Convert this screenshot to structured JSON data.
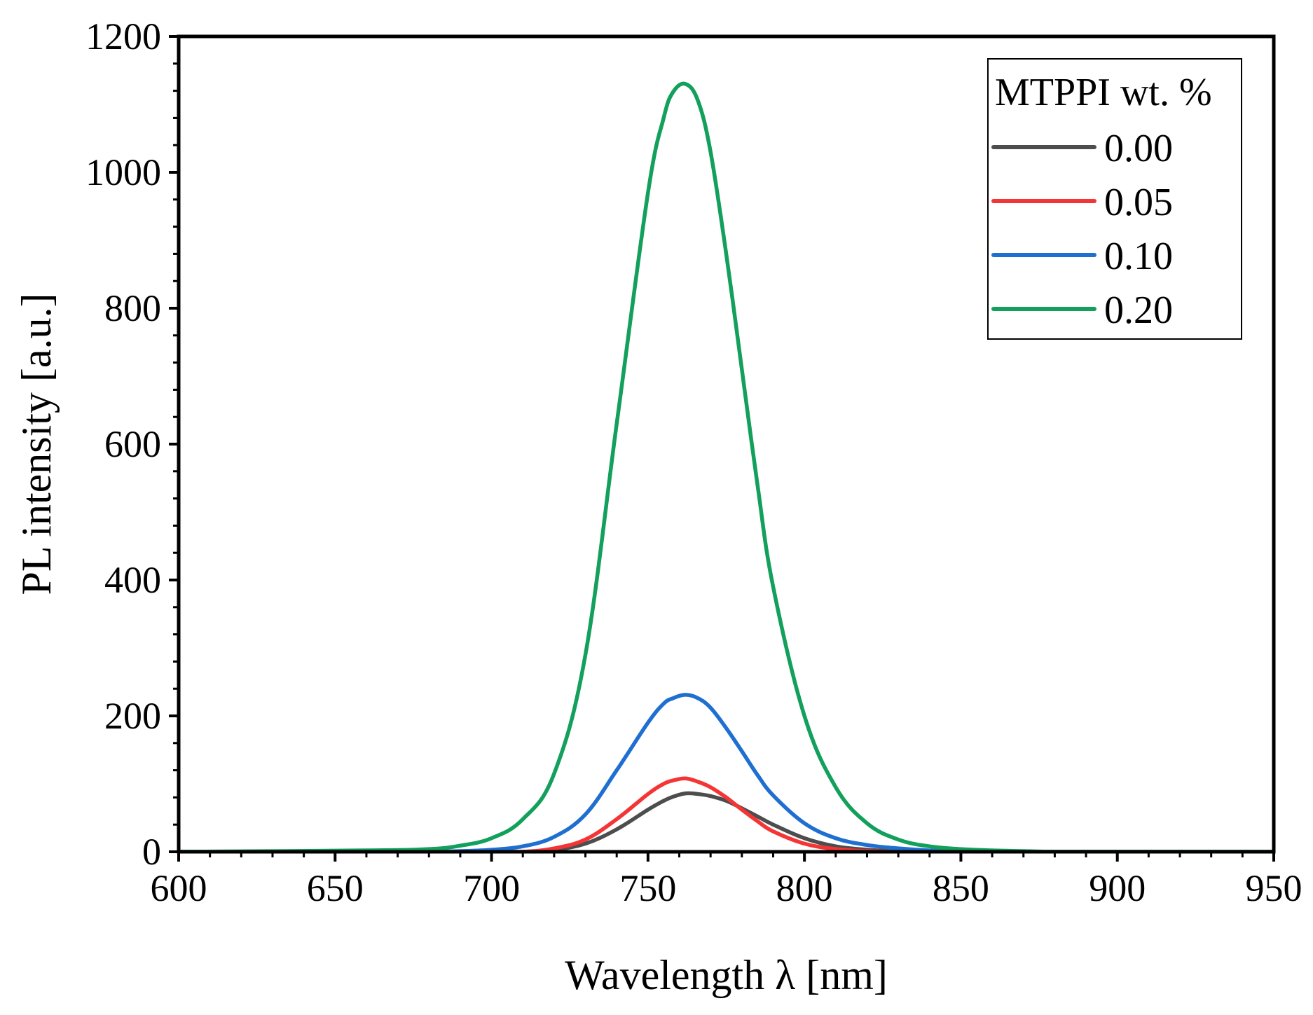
{
  "chart_data": {
    "type": "line",
    "title": "",
    "xlabel": "Wavelength λ [nm]",
    "ylabel": "PL intensity [a.u.]",
    "xlim": [
      600,
      950
    ],
    "ylim": [
      0,
      1200
    ],
    "x_ticks": [
      600,
      650,
      700,
      750,
      800,
      850,
      900,
      950
    ],
    "y_ticks": [
      0,
      200,
      400,
      600,
      800,
      1000,
      1200
    ],
    "x_tick_labels": [
      "600",
      "650",
      "700",
      "750",
      "800",
      "850",
      "900",
      "950"
    ],
    "y_tick_labels": [
      "0",
      "200",
      "400",
      "600",
      "800",
      "1000",
      "1200"
    ],
    "grid": false,
    "legend": {
      "title": "MTPPI wt. %",
      "placement": "top-right"
    },
    "x": [
      600,
      660,
      680,
      690,
      700,
      710,
      720,
      730,
      740,
      750,
      755,
      758,
      762,
      766,
      770,
      775,
      780,
      785,
      790,
      800,
      810,
      820,
      830,
      840,
      850,
      860,
      870,
      880,
      900,
      950
    ],
    "series": [
      {
        "name": "0.00",
        "color": "#4d4d4d",
        "values": [
          0,
          0,
          0,
          0,
          0,
          0,
          3,
          12,
          33,
          62,
          75,
          81,
          86,
          85,
          82,
          75,
          64,
          52,
          40,
          20,
          8,
          3,
          1,
          0,
          0,
          0,
          0,
          0,
          0,
          0
        ]
      },
      {
        "name": "0.05",
        "color": "#f53535",
        "values": [
          0,
          0,
          0,
          0,
          0,
          0,
          5,
          18,
          48,
          85,
          100,
          105,
          108,
          103,
          95,
          80,
          62,
          45,
          30,
          12,
          4,
          1,
          0,
          0,
          0,
          0,
          0,
          0,
          0,
          0
        ]
      },
      {
        "name": "0.10",
        "color": "#1f6fd1",
        "values": [
          0,
          0,
          0,
          1,
          3,
          8,
          22,
          55,
          120,
          190,
          218,
          226,
          231,
          226,
          212,
          182,
          148,
          113,
          83,
          42,
          20,
          10,
          5,
          2,
          1,
          0,
          0,
          0,
          0,
          0
        ]
      },
      {
        "name": "0.20",
        "color": "#12a05c",
        "values": [
          0,
          2,
          4,
          9,
          20,
          48,
          115,
          290,
          630,
          970,
          1080,
          1118,
          1130,
          1105,
          1030,
          880,
          710,
          540,
          390,
          200,
          95,
          42,
          18,
          8,
          4,
          2,
          1,
          0,
          0,
          0
        ]
      }
    ]
  }
}
